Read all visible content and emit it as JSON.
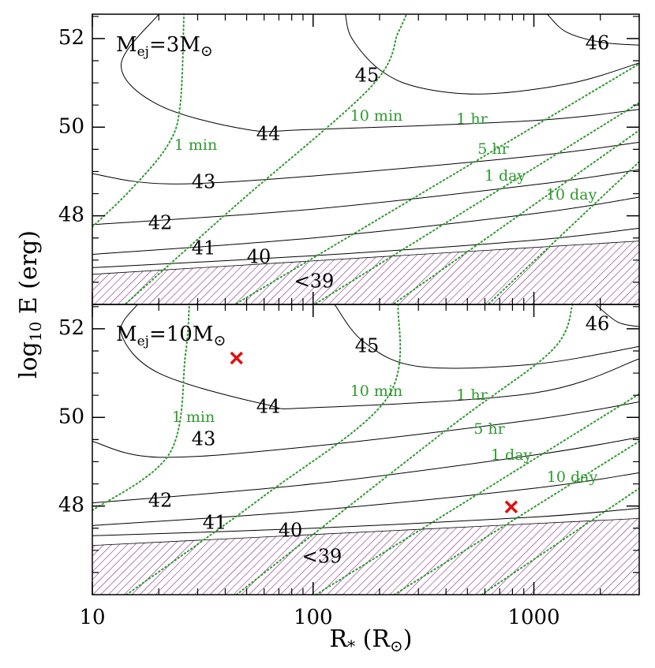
{
  "chart_data": [
    {
      "type": "contour",
      "title": [
        "M",
        "ej",
        "=3M",
        "⊙"
      ],
      "ylabel": [
        "log",
        "10",
        " E (erg)"
      ],
      "xscale": "log",
      "xlim": [
        10,
        3000
      ],
      "ylim": [
        46,
        52.55
      ],
      "xticks": [
        10,
        100,
        1000
      ],
      "xminorticks": [
        20,
        30,
        40,
        50,
        60,
        70,
        80,
        90,
        200,
        300,
        400,
        500,
        600,
        700,
        800,
        900,
        2000,
        3000
      ],
      "yticks": [
        48,
        50,
        52
      ],
      "yminorticks": [
        46.5,
        47,
        47.5,
        48.5,
        49,
        49.5,
        50.5,
        51,
        51.5,
        52.5
      ],
      "region": {
        "label": "<39",
        "color": "#8a2a8a",
        "x": [
          10,
          3000
        ],
        "upper": [
          46.68,
          47.43
        ]
      },
      "contours": [
        {
          "label": "40",
          "color": "#000000",
          "x": [
            10,
            100,
            1000,
            3000
          ],
          "y": [
            46.83,
            47.1,
            47.45,
            47.72
          ]
        },
        {
          "label": "41",
          "color": "#000000",
          "x": [
            10,
            100,
            1000,
            3000
          ],
          "y": [
            47.13,
            47.5,
            48.05,
            48.42
          ]
        },
        {
          "label": "42",
          "color": "#000000",
          "x": [
            10,
            100,
            1000,
            3000
          ],
          "y": [
            47.8,
            48.15,
            48.7,
            49.04
          ]
        },
        {
          "label": "43",
          "color": "#000000",
          "x": [
            10,
            22,
            100,
            1000,
            3000
          ],
          "y": [
            48.95,
            48.72,
            48.9,
            49.35,
            49.66
          ]
        },
        {
          "label": "44",
          "color": "#000000",
          "x": [
            20,
            13.5,
            20,
            50,
            100,
            1000,
            3000
          ],
          "y": [
            52.55,
            51.4,
            50.5,
            49.95,
            49.95,
            50.15,
            50.4
          ]
        },
        {
          "label": "45",
          "color": "#000000",
          "x": [
            140,
            150,
            200,
            300,
            600,
            1500,
            3000
          ],
          "y": [
            52.55,
            52.0,
            51.3,
            50.9,
            50.75,
            51.0,
            51.45
          ]
        },
        {
          "label": "46",
          "color": "#000000",
          "x": [
            1150,
            1400,
            2000,
            3000
          ],
          "y": [
            52.55,
            52.15,
            51.92,
            51.85
          ]
        }
      ],
      "durations": [
        {
          "label": "1 min",
          "color": "#2e9a2e",
          "x": [
            10,
            15,
            22,
            25,
            26
          ],
          "y": [
            47.75,
            48.6,
            49.6,
            50.5,
            52.55
          ]
        },
        {
          "label": "10 min",
          "color": "#2e9a2e",
          "x": [
            14.2,
            45,
            182,
            243,
            265
          ],
          "y": [
            46.02,
            48.25,
            50.9,
            52.14,
            52.55
          ]
        },
        {
          "label": "1 hr",
          "color": "#2e9a2e",
          "x": [
            45,
            3000
          ],
          "y": [
            46.02,
            51.43
          ]
        },
        {
          "label": "5 hr",
          "color": "#2e9a2e",
          "x": [
            103,
            3000
          ],
          "y": [
            46.02,
            50.55
          ]
        },
        {
          "label": "1 day",
          "color": "#2e9a2e",
          "x": [
            233,
            3000
          ],
          "y": [
            46.02,
            49.93
          ]
        },
        {
          "label": "10 day",
          "color": "#2e9a2e",
          "x": [
            626,
            3000
          ],
          "y": [
            46.02,
            49.22
          ]
        }
      ]
    },
    {
      "type": "contour",
      "title": [
        "M",
        "ej",
        "=10M",
        "⊙"
      ],
      "xlabel": [
        "R",
        "*",
        " (R",
        "⊙",
        ")"
      ],
      "xscale": "log",
      "xlim": [
        10,
        3000
      ],
      "ylim": [
        46,
        52.55
      ],
      "xticks": [
        10,
        100,
        1000
      ],
      "xminorticks": [
        20,
        30,
        40,
        50,
        60,
        70,
        80,
        90,
        200,
        300,
        400,
        500,
        600,
        700,
        800,
        900,
        2000,
        3000
      ],
      "yticks": [
        48,
        50,
        52
      ],
      "yminorticks": [
        46.5,
        47,
        47.5,
        48.5,
        49,
        49.5,
        50.5,
        51,
        51.5,
        52.5
      ],
      "region": {
        "label": "<39",
        "color": "#8a2a8a",
        "x": [
          10,
          3000
        ],
        "upper": [
          47.11,
          47.72
        ]
      },
      "contours": [
        {
          "label": "40",
          "color": "#000000",
          "x": [
            10,
            100,
            1000,
            3000
          ],
          "y": [
            47.33,
            47.5,
            47.75,
            47.95
          ]
        },
        {
          "label": "41",
          "color": "#000000",
          "x": [
            10,
            100,
            1000,
            3000
          ],
          "y": [
            47.56,
            47.9,
            48.4,
            48.75
          ]
        },
        {
          "label": "42",
          "color": "#000000",
          "x": [
            10,
            100,
            1000,
            3000
          ],
          "y": [
            48.07,
            48.5,
            49.15,
            49.55
          ]
        },
        {
          "label": "43",
          "color": "#000000",
          "x": [
            10,
            20,
            100,
            1000,
            3000
          ],
          "y": [
            49.46,
            49.1,
            49.35,
            49.95,
            50.35
          ]
        },
        {
          "label": "44",
          "color": "#000000",
          "x": [
            16,
            13.5,
            20,
            60,
            100,
            1000,
            3000
          ],
          "y": [
            52.55,
            51.9,
            51.0,
            50.3,
            50.22,
            50.55,
            51.32
          ]
        },
        {
          "label": "45",
          "color": "#000000",
          "x": [
            125,
            170,
            300,
            1000,
            3000
          ],
          "y": [
            52.55,
            51.7,
            51.15,
            51.2,
            51.6
          ]
        },
        {
          "label": "46",
          "color": "#000000",
          "x": [
            1900,
            2400,
            3000
          ],
          "y": [
            52.55,
            52.15,
            52.05
          ]
        }
      ],
      "durations": [
        {
          "label": "1 min",
          "color": "#2e9a2e",
          "x": [
            10,
            22.4,
            26.4,
            27.5
          ],
          "y": [
            47.9,
            49.19,
            51.41,
            52.55
          ]
        },
        {
          "label": "10 min",
          "color": "#2e9a2e",
          "x": [
            14.3,
            60,
            216,
            243
          ],
          "y": [
            46.0,
            48.23,
            50.43,
            52.55
          ]
        },
        {
          "label": "1 hr",
          "color": "#2e9a2e",
          "x": [
            45,
            400,
            1200,
            1500
          ],
          "y": [
            46.0,
            49.71,
            51.5,
            52.55
          ]
        },
        {
          "label": "5 hr",
          "color": "#2e9a2e",
          "x": [
            103,
            3000
          ],
          "y": [
            46.0,
            50.53
          ]
        },
        {
          "label": "1 day",
          "color": "#2e9a2e",
          "x": [
            233,
            3000
          ],
          "y": [
            46.0,
            49.46
          ]
        },
        {
          "label": "10 day",
          "color": "#2e9a2e",
          "x": [
            580,
            3000
          ],
          "y": [
            46.0,
            48.4
          ]
        }
      ],
      "markers": {
        "color": "#e01010",
        "x": [
          45,
          790
        ],
        "y": [
          51.34,
          47.98
        ]
      }
    }
  ]
}
